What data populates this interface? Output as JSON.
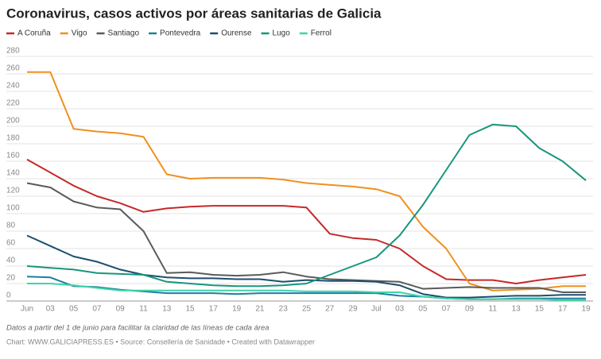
{
  "chart_data": {
    "type": "line",
    "title": "Coronavirus, casos activos por áreas sanitarias de Galicia",
    "note": "Datos a partir del 1 de junio para facilitar la claridad de las líneas de cada área",
    "footer": "Chart: WWW.GALICIAPRESS.ES • Source: Consellería de Sanidade • Created with Datawrapper",
    "categories": [
      "Jun",
      "03",
      "05",
      "07",
      "09",
      "11",
      "13",
      "15",
      "17",
      "19",
      "21",
      "23",
      "25",
      "27",
      "29",
      "Jul",
      "03",
      "05",
      "07",
      "09",
      "11",
      "13",
      "15",
      "17",
      "19"
    ],
    "ylim": [
      0,
      280
    ],
    "yticks": [
      0,
      20,
      40,
      60,
      80,
      100,
      120,
      140,
      160,
      180,
      200,
      220,
      240,
      260,
      280
    ],
    "grid": true,
    "series": [
      {
        "name": "A Coruña",
        "color": "#c62828",
        "values": [
          162,
          147,
          132,
          120,
          112,
          102,
          106,
          108,
          109,
          109,
          109,
          109,
          107,
          77,
          72,
          70,
          60,
          40,
          25,
          24,
          24,
          20,
          24,
          27,
          30
        ]
      },
      {
        "name": "Vigo",
        "color": "#f0901e",
        "values": [
          262,
          262,
          197,
          194,
          192,
          188,
          145,
          140,
          141,
          141,
          141,
          139,
          135,
          133,
          131,
          128,
          120,
          85,
          60,
          20,
          12,
          13,
          14,
          17,
          17
        ]
      },
      {
        "name": "Santiago",
        "color": "#5a5a5a",
        "values": [
          135,
          130,
          114,
          107,
          105,
          80,
          32,
          33,
          30,
          29,
          30,
          33,
          28,
          25,
          24,
          23,
          22,
          14,
          15,
          16,
          15,
          15,
          15,
          10,
          10
        ]
      },
      {
        "name": "Pontevedra",
        "color": "#1a7fa0",
        "values": [
          28,
          27,
          17,
          16,
          13,
          11,
          9,
          9,
          9,
          8,
          9,
          9,
          9,
          9,
          9,
          9,
          6,
          5,
          3,
          2,
          2,
          3,
          3,
          3,
          3
        ]
      },
      {
        "name": "Ourense",
        "color": "#1d4e6e",
        "values": [
          75,
          63,
          51,
          45,
          36,
          30,
          27,
          26,
          26,
          25,
          25,
          22,
          24,
          23,
          23,
          22,
          18,
          8,
          4,
          4,
          5,
          6,
          6,
          7,
          7
        ]
      },
      {
        "name": "Lugo",
        "color": "#17967a",
        "values": [
          40,
          38,
          36,
          32,
          31,
          30,
          22,
          20,
          18,
          17,
          17,
          18,
          20,
          30,
          40,
          50,
          75,
          110,
          150,
          190,
          202,
          200,
          175,
          160,
          138
        ]
      },
      {
        "name": "Ferrol",
        "color": "#3fd4a8",
        "values": [
          20,
          20,
          18,
          15,
          12,
          12,
          12,
          12,
          12,
          12,
          12,
          12,
          11,
          11,
          11,
          10,
          10,
          5,
          3,
          2,
          2,
          2,
          2,
          1,
          1
        ]
      }
    ]
  }
}
